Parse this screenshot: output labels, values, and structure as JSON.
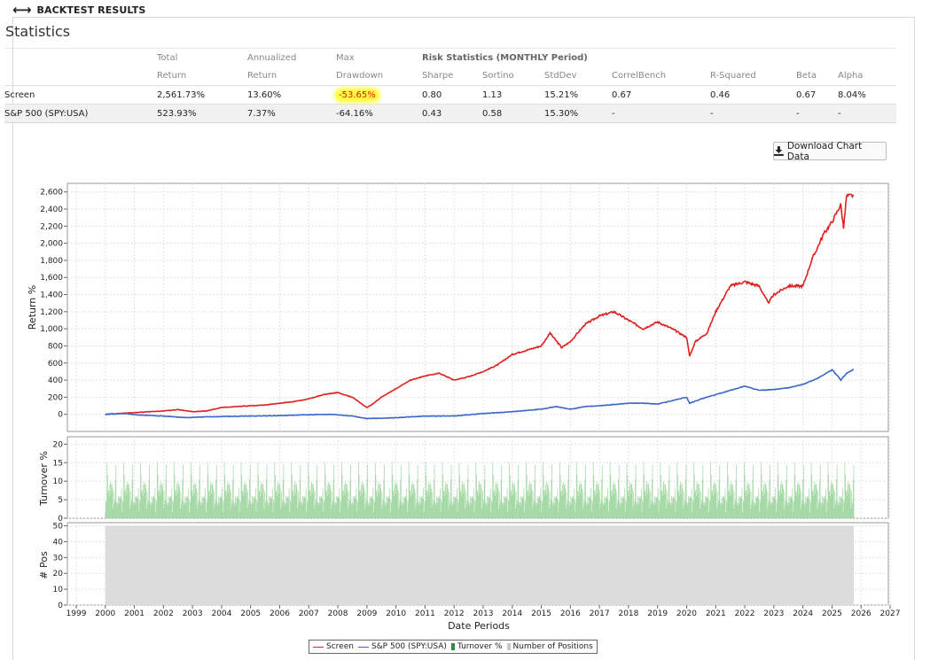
{
  "header": {
    "back_icon": "left-right-arrow-icon",
    "title": "BACKTEST RESULTS"
  },
  "statistics": {
    "heading": "Statistics",
    "header_row1": [
      "Total",
      "Annualized",
      "Max",
      "Risk Statistics (MONTHLY Period)"
    ],
    "header_row2": [
      "Return",
      "Return",
      "Drawdown",
      "Sharpe",
      "Sortino",
      "StdDev",
      "CorrelBench",
      "R-Squared",
      "Beta",
      "Alpha"
    ],
    "rows": [
      {
        "name": "Screen",
        "total_return": "2,561.73%",
        "annualized_return": "13.60%",
        "max_drawdown": "-53.65%",
        "sharpe": "0.80",
        "sortino": "1.13",
        "stddev": "15.21%",
        "correl_bench": "0.67",
        "r_squared": "0.46",
        "beta": "0.67",
        "alpha": "8.04%"
      },
      {
        "name": "S&P 500 (SPY:USA)",
        "total_return": "523.93%",
        "annualized_return": "7.37%",
        "max_drawdown": "-64.16%",
        "sharpe": "0.43",
        "sortino": "0.58",
        "stddev": "15.30%",
        "correl_bench": "-",
        "r_squared": "-",
        "beta": "-",
        "alpha": "-"
      }
    ],
    "highlight_color": "#ffff44"
  },
  "download_button": {
    "label": "Download Chart Data",
    "icon": "download-icon"
  },
  "colors": {
    "screen": "#e02020",
    "benchmark": "#3a67c8",
    "turnover": "#8fcf8f",
    "positions": "#dcdcdc",
    "negative": "#d11111"
  },
  "chart_data": [
    {
      "type": "line",
      "ylabel": "Return %",
      "ylim": [
        -200,
        2700
      ],
      "yticks": [
        0,
        200,
        400,
        600,
        800,
        1000,
        1200,
        1400,
        1600,
        1800,
        2000,
        2200,
        2400,
        2600
      ],
      "ytick_labels": [
        "0",
        "200",
        "400",
        "600",
        "800",
        "1,000",
        "1,200",
        "1,400",
        "1,600",
        "1,800",
        "2,000",
        "2,200",
        "2,400",
        "2,600"
      ],
      "grid": true,
      "series": [
        {
          "name": "Screen",
          "color": "#e02020",
          "points": [
            [
              2000.0,
              0
            ],
            [
              2000.5,
              10
            ],
            [
              2001.0,
              20
            ],
            [
              2001.5,
              30
            ],
            [
              2002.0,
              40
            ],
            [
              2002.5,
              55
            ],
            [
              2003.0,
              30
            ],
            [
              2003.5,
              40
            ],
            [
              2004.0,
              80
            ],
            [
              2004.5,
              90
            ],
            [
              2005.0,
              100
            ],
            [
              2005.5,
              110
            ],
            [
              2006.0,
              130
            ],
            [
              2006.5,
              150
            ],
            [
              2007.0,
              180
            ],
            [
              2007.5,
              230
            ],
            [
              2008.0,
              255
            ],
            [
              2008.5,
              200
            ],
            [
              2009.0,
              80
            ],
            [
              2009.2,
              120
            ],
            [
              2009.5,
              200
            ],
            [
              2010.0,
              300
            ],
            [
              2010.5,
              400
            ],
            [
              2011.0,
              450
            ],
            [
              2011.5,
              480
            ],
            [
              2012.0,
              400
            ],
            [
              2012.5,
              440
            ],
            [
              2013.0,
              500
            ],
            [
              2013.5,
              580
            ],
            [
              2014.0,
              700
            ],
            [
              2014.5,
              750
            ],
            [
              2015.0,
              800
            ],
            [
              2015.3,
              950
            ],
            [
              2015.7,
              780
            ],
            [
              2016.0,
              850
            ],
            [
              2016.5,
              1050
            ],
            [
              2017.0,
              1150
            ],
            [
              2017.5,
              1200
            ],
            [
              2018.0,
              1100
            ],
            [
              2018.5,
              1000
            ],
            [
              2019.0,
              1080
            ],
            [
              2019.5,
              1000
            ],
            [
              2020.0,
              900
            ],
            [
              2020.1,
              680
            ],
            [
              2020.3,
              850
            ],
            [
              2020.7,
              950
            ],
            [
              2021.0,
              1200
            ],
            [
              2021.5,
              1500
            ],
            [
              2022.0,
              1550
            ],
            [
              2022.5,
              1500
            ],
            [
              2022.8,
              1300
            ],
            [
              2023.0,
              1400
            ],
            [
              2023.5,
              1500
            ],
            [
              2024.0,
              1500
            ],
            [
              2024.3,
              1800
            ],
            [
              2024.7,
              2100
            ],
            [
              2025.0,
              2250
            ],
            [
              2025.3,
              2450
            ],
            [
              2025.4,
              2180
            ],
            [
              2025.5,
              2550
            ],
            [
              2025.75,
              2561.73
            ]
          ]
        },
        {
          "name": "S&P 500 (SPY:USA)",
          "color": "#3a67c8",
          "points": [
            [
              2000.0,
              0
            ],
            [
              2000.7,
              10
            ],
            [
              2001.0,
              -5
            ],
            [
              2002.0,
              -20
            ],
            [
              2002.8,
              -40
            ],
            [
              2003.0,
              -35
            ],
            [
              2004.0,
              -25
            ],
            [
              2005.0,
              -20
            ],
            [
              2006.0,
              -15
            ],
            [
              2007.0,
              -5
            ],
            [
              2007.8,
              0
            ],
            [
              2008.5,
              -20
            ],
            [
              2009.0,
              -50
            ],
            [
              2010.0,
              -40
            ],
            [
              2011.0,
              -20
            ],
            [
              2012.0,
              -20
            ],
            [
              2013.0,
              10
            ],
            [
              2014.0,
              30
            ],
            [
              2015.0,
              60
            ],
            [
              2015.5,
              90
            ],
            [
              2016.0,
              60
            ],
            [
              2016.5,
              90
            ],
            [
              2017.0,
              100
            ],
            [
              2018.0,
              130
            ],
            [
              2018.5,
              130
            ],
            [
              2019.0,
              120
            ],
            [
              2020.0,
              200
            ],
            [
              2020.1,
              130
            ],
            [
              2020.5,
              180
            ],
            [
              2021.0,
              230
            ],
            [
              2022.0,
              330
            ],
            [
              2022.5,
              280
            ],
            [
              2023.0,
              290
            ],
            [
              2023.5,
              310
            ],
            [
              2024.0,
              350
            ],
            [
              2024.5,
              420
            ],
            [
              2025.0,
              520
            ],
            [
              2025.2,
              450
            ],
            [
              2025.3,
              400
            ],
            [
              2025.5,
              480
            ],
            [
              2025.75,
              523.93
            ]
          ]
        }
      ]
    },
    {
      "type": "bar",
      "ylabel": "Turnover %",
      "ylim": [
        0,
        22
      ],
      "yticks": [
        0,
        5,
        10,
        15,
        20
      ],
      "series": [
        {
          "name": "Turnover %",
          "color": "#8fcf8f",
          "values_pattern": [
            3,
            8,
            6,
            11,
            5,
            9,
            14,
            7,
            4,
            10,
            12,
            6,
            8,
            16,
            5,
            9,
            7,
            13,
            6,
            10,
            8,
            15,
            4,
            9,
            11,
            7,
            12,
            5,
            18,
            8
          ]
        }
      ]
    },
    {
      "type": "area",
      "ylabel": "# Pos",
      "ylim": [
        0,
        52
      ],
      "yticks": [
        0,
        10,
        20,
        30,
        40,
        50
      ],
      "xlabel": "Date Periods",
      "x_ticks": [
        "1999",
        "2000",
        "2001",
        "2002",
        "2003",
        "2004",
        "2005",
        "2006",
        "2007",
        "2008",
        "2009",
        "2010",
        "2011",
        "2012",
        "2013",
        "2014",
        "2015",
        "2016",
        "2017",
        "2018",
        "2019",
        "2020",
        "2021",
        "2022",
        "2023",
        "2024",
        "2025",
        "2026",
        "2027"
      ],
      "series": [
        {
          "name": "Number of Positions",
          "color": "#dcdcdc",
          "value": 50,
          "x_range": [
            2000,
            2025.75
          ]
        }
      ]
    }
  ],
  "legend": [
    "Screen",
    "S&P 500 (SPY:USA)",
    "Turnover %",
    "Number of Positions"
  ]
}
